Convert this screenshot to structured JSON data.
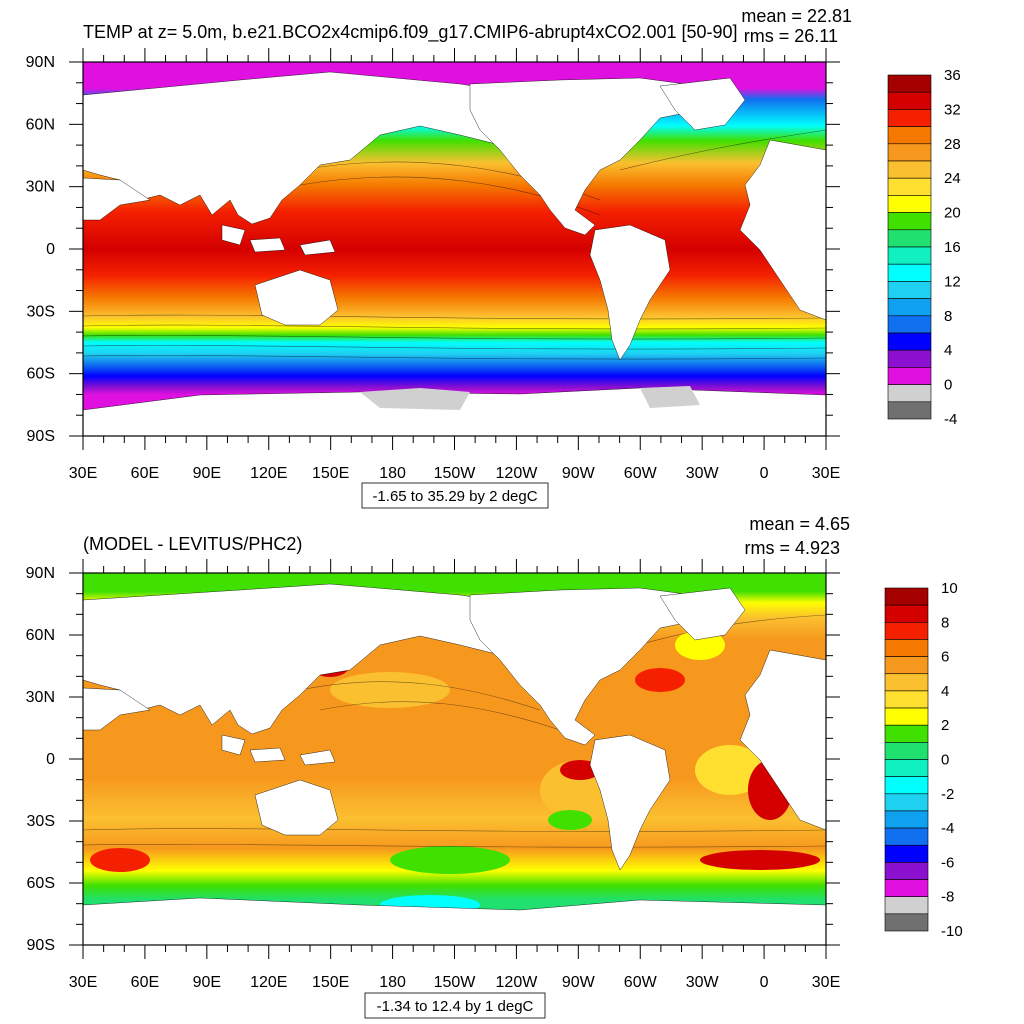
{
  "panels": [
    {
      "id": "temp",
      "title": "TEMP at z=   5.0m, b.e21.BCO2x4cmip6.f09_g17.CMIP6-abrupt4xCO2.001 [50-90]",
      "mean_text": "mean = 22.81",
      "rms_text": "rms = 26.11",
      "info_text": "-1.65 to 35.29 by 2 degC",
      "colorbar": {
        "labels": [
          "36",
          "32",
          "28",
          "24",
          "20",
          "16",
          "12",
          "8",
          "4",
          "0",
          "-4"
        ],
        "colors": [
          "#a50000",
          "#d40000",
          "#f52000",
          "#f57800",
          "#f7981e",
          "#fbc030",
          "#ffe030",
          "#ffff00",
          "#40e000",
          "#20e070",
          "#10f0c0",
          "#00ffff",
          "#20d0f0",
          "#10a0f0",
          "#1070f0",
          "#0000ff",
          "#8c10d0",
          "#e010e0",
          "#d0d0d0",
          "#707070"
        ]
      }
    },
    {
      "id": "diff",
      "title": "(MODEL - LEVITUS/PHC2)",
      "mean_text": "mean = 4.65",
      "rms_text": "rms = 4.923",
      "info_text": "-1.34 to 12.4 by 1 degC",
      "colorbar": {
        "labels": [
          "10",
          "8",
          "6",
          "4",
          "2",
          "0",
          "-2",
          "-4",
          "-6",
          "-8",
          "-10"
        ],
        "colors": [
          "#a50000",
          "#d40000",
          "#f52000",
          "#f57800",
          "#f7981e",
          "#fbc030",
          "#ffe030",
          "#ffff00",
          "#40e000",
          "#20e070",
          "#10f0c0",
          "#00ffff",
          "#20d0f0",
          "#10a0f0",
          "#1070f0",
          "#0000ff",
          "#8c10d0",
          "#e010e0",
          "#d0d0d0",
          "#707070"
        ]
      }
    }
  ],
  "axes": {
    "lat_labels": [
      "90N",
      "60N",
      "30N",
      "0",
      "30S",
      "60S",
      "90S"
    ],
    "lon_labels": [
      "30E",
      "60E",
      "90E",
      "120E",
      "150E",
      "180",
      "150W",
      "120W",
      "90W",
      "60W",
      "30W",
      "0",
      "30E"
    ]
  },
  "colors": {
    "land": "#ffffff",
    "frame": "#000000"
  }
}
